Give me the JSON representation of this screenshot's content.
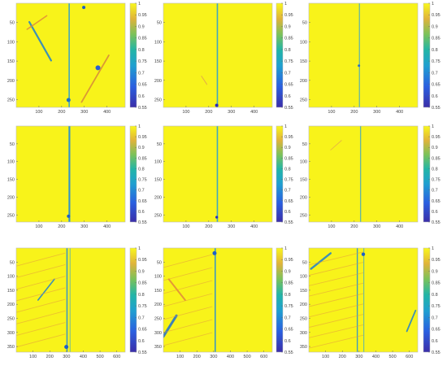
{
  "chart_data": [
    {
      "type": "heatmap",
      "xticks": [
        100,
        200,
        300,
        400
      ],
      "yticks": [
        50,
        100,
        150,
        200,
        250
      ],
      "xlim": [
        0,
        480
      ],
      "ylim": [
        0,
        270
      ],
      "colorbar_ticks": [
        0.55,
        0.6,
        0.65,
        0.7,
        0.75,
        0.8,
        0.85,
        0.9,
        0.95,
        1
      ],
      "colorbar_tick_labels": [
        "0.55",
        "0.6",
        "0.65",
        "0.7",
        "0.75",
        "0.8",
        "0.85",
        "0.9",
        "0.95",
        "1"
      ],
      "colorbar_range": [
        0.55,
        1
      ]
    },
    {
      "type": "heatmap",
      "xticks": [
        100,
        200,
        300,
        400
      ],
      "yticks": [
        50,
        100,
        150,
        200,
        250
      ],
      "xlim": [
        0,
        480
      ],
      "ylim": [
        0,
        270
      ],
      "colorbar_ticks": [
        0.55,
        0.6,
        0.65,
        0.7,
        0.75,
        0.8,
        0.85,
        0.9,
        0.95,
        1
      ],
      "colorbar_tick_labels": [
        "0.55",
        "0.6",
        "0.65",
        "0.7",
        "0.75",
        "0.8",
        "0.85",
        "0.9",
        "0.95",
        "1"
      ],
      "colorbar_range": [
        0.55,
        1
      ]
    },
    {
      "type": "heatmap",
      "xticks": [
        100,
        200,
        300,
        400
      ],
      "yticks": [
        50,
        100,
        150,
        200,
        250
      ],
      "xlim": [
        0,
        480
      ],
      "ylim": [
        0,
        270
      ],
      "colorbar_ticks": [
        0.55,
        0.6,
        0.65,
        0.7,
        0.75,
        0.8,
        0.85,
        0.9,
        0.95,
        1
      ],
      "colorbar_tick_labels": [
        "0.55",
        "0.6",
        "0.65",
        "0.7",
        "0.75",
        "0.8",
        "0.85",
        "0.9",
        "0.95",
        "1"
      ],
      "colorbar_range": [
        0.55,
        1
      ]
    },
    {
      "type": "heatmap",
      "xticks": [
        100,
        200,
        300,
        400
      ],
      "yticks": [
        50,
        100,
        150,
        200,
        250
      ],
      "xlim": [
        0,
        480
      ],
      "ylim": [
        0,
        270
      ],
      "colorbar_ticks": [
        0.55,
        0.6,
        0.65,
        0.7,
        0.75,
        0.8,
        0.85,
        0.9,
        0.95,
        1
      ],
      "colorbar_tick_labels": [
        "0.55",
        "0.6",
        "0.65",
        "0.7",
        "0.75",
        "0.8",
        "0.85",
        "0.9",
        "0.95",
        "1"
      ],
      "colorbar_range": [
        0.55,
        1
      ]
    },
    {
      "type": "heatmap",
      "xticks": [
        100,
        200,
        300,
        400
      ],
      "yticks": [
        50,
        100,
        150,
        200,
        250
      ],
      "xlim": [
        0,
        480
      ],
      "ylim": [
        0,
        270
      ],
      "colorbar_ticks": [
        0.55,
        0.6,
        0.65,
        0.7,
        0.75,
        0.8,
        0.85,
        0.9,
        0.95,
        1
      ],
      "colorbar_tick_labels": [
        "0.55",
        "0.6",
        "0.65",
        "0.7",
        "0.75",
        "0.8",
        "0.85",
        "0.9",
        "0.95",
        "1"
      ],
      "colorbar_range": [
        0.55,
        1
      ]
    },
    {
      "type": "heatmap",
      "xticks": [
        100,
        200,
        300,
        400
      ],
      "yticks": [
        50,
        100,
        150,
        200,
        250
      ],
      "xlim": [
        0,
        480
      ],
      "ylim": [
        0,
        270
      ],
      "colorbar_ticks": [
        0.55,
        0.6,
        0.65,
        0.7,
        0.75,
        0.8,
        0.85,
        0.9,
        0.95,
        1
      ],
      "colorbar_tick_labels": [
        "0.55",
        "0.6",
        "0.65",
        "0.7",
        "0.75",
        "0.8",
        "0.85",
        "0.9",
        "0.95",
        "1"
      ],
      "colorbar_range": [
        0.55,
        1
      ]
    },
    {
      "type": "heatmap",
      "xticks": [
        100,
        200,
        300,
        400,
        500,
        600
      ],
      "yticks": [
        50,
        100,
        150,
        200,
        250,
        300,
        350
      ],
      "xlim": [
        0,
        650
      ],
      "ylim": [
        0,
        370
      ],
      "colorbar_ticks": [
        0.55,
        0.6,
        0.65,
        0.7,
        0.75,
        0.8,
        0.85,
        0.9,
        0.95,
        1
      ],
      "colorbar_tick_labels": [
        "0.55",
        "0.6",
        "0.65",
        "0.7",
        "0.75",
        "0.8",
        "0.85",
        "0.9",
        "0.95",
        "1"
      ],
      "colorbar_range": [
        0.55,
        1
      ]
    },
    {
      "type": "heatmap",
      "xticks": [
        100,
        200,
        300,
        400,
        500,
        600
      ],
      "yticks": [
        50,
        100,
        150,
        200,
        250,
        300,
        350
      ],
      "xlim": [
        0,
        650
      ],
      "ylim": [
        0,
        370
      ],
      "colorbar_ticks": [
        0.55,
        0.6,
        0.65,
        0.7,
        0.75,
        0.8,
        0.85,
        0.9,
        0.95,
        1
      ],
      "colorbar_tick_labels": [
        "0.55",
        "0.6",
        "0.65",
        "0.7",
        "0.75",
        "0.8",
        "0.85",
        "0.9",
        "0.95",
        "1"
      ],
      "colorbar_range": [
        0.55,
        1
      ]
    },
    {
      "type": "heatmap",
      "xticks": [
        100,
        200,
        300,
        400,
        500,
        600
      ],
      "yticks": [
        50,
        100,
        150,
        200,
        250,
        300,
        350
      ],
      "xlim": [
        0,
        650
      ],
      "ylim": [
        0,
        370
      ],
      "colorbar_ticks": [
        0.55,
        0.6,
        0.65,
        0.7,
        0.75,
        0.8,
        0.85,
        0.9,
        0.95,
        1
      ],
      "colorbar_tick_labels": [
        "0.55",
        "0.6",
        "0.65",
        "0.7",
        "0.75",
        "0.8",
        "0.85",
        "0.9",
        "0.95",
        "1"
      ],
      "colorbar_range": [
        0.55,
        1
      ]
    }
  ],
  "colors": {
    "high": "#f8f31a",
    "mid_orange": "#f1b53a",
    "mid_teal": "#22b5a6",
    "low": "#2a28c2"
  }
}
